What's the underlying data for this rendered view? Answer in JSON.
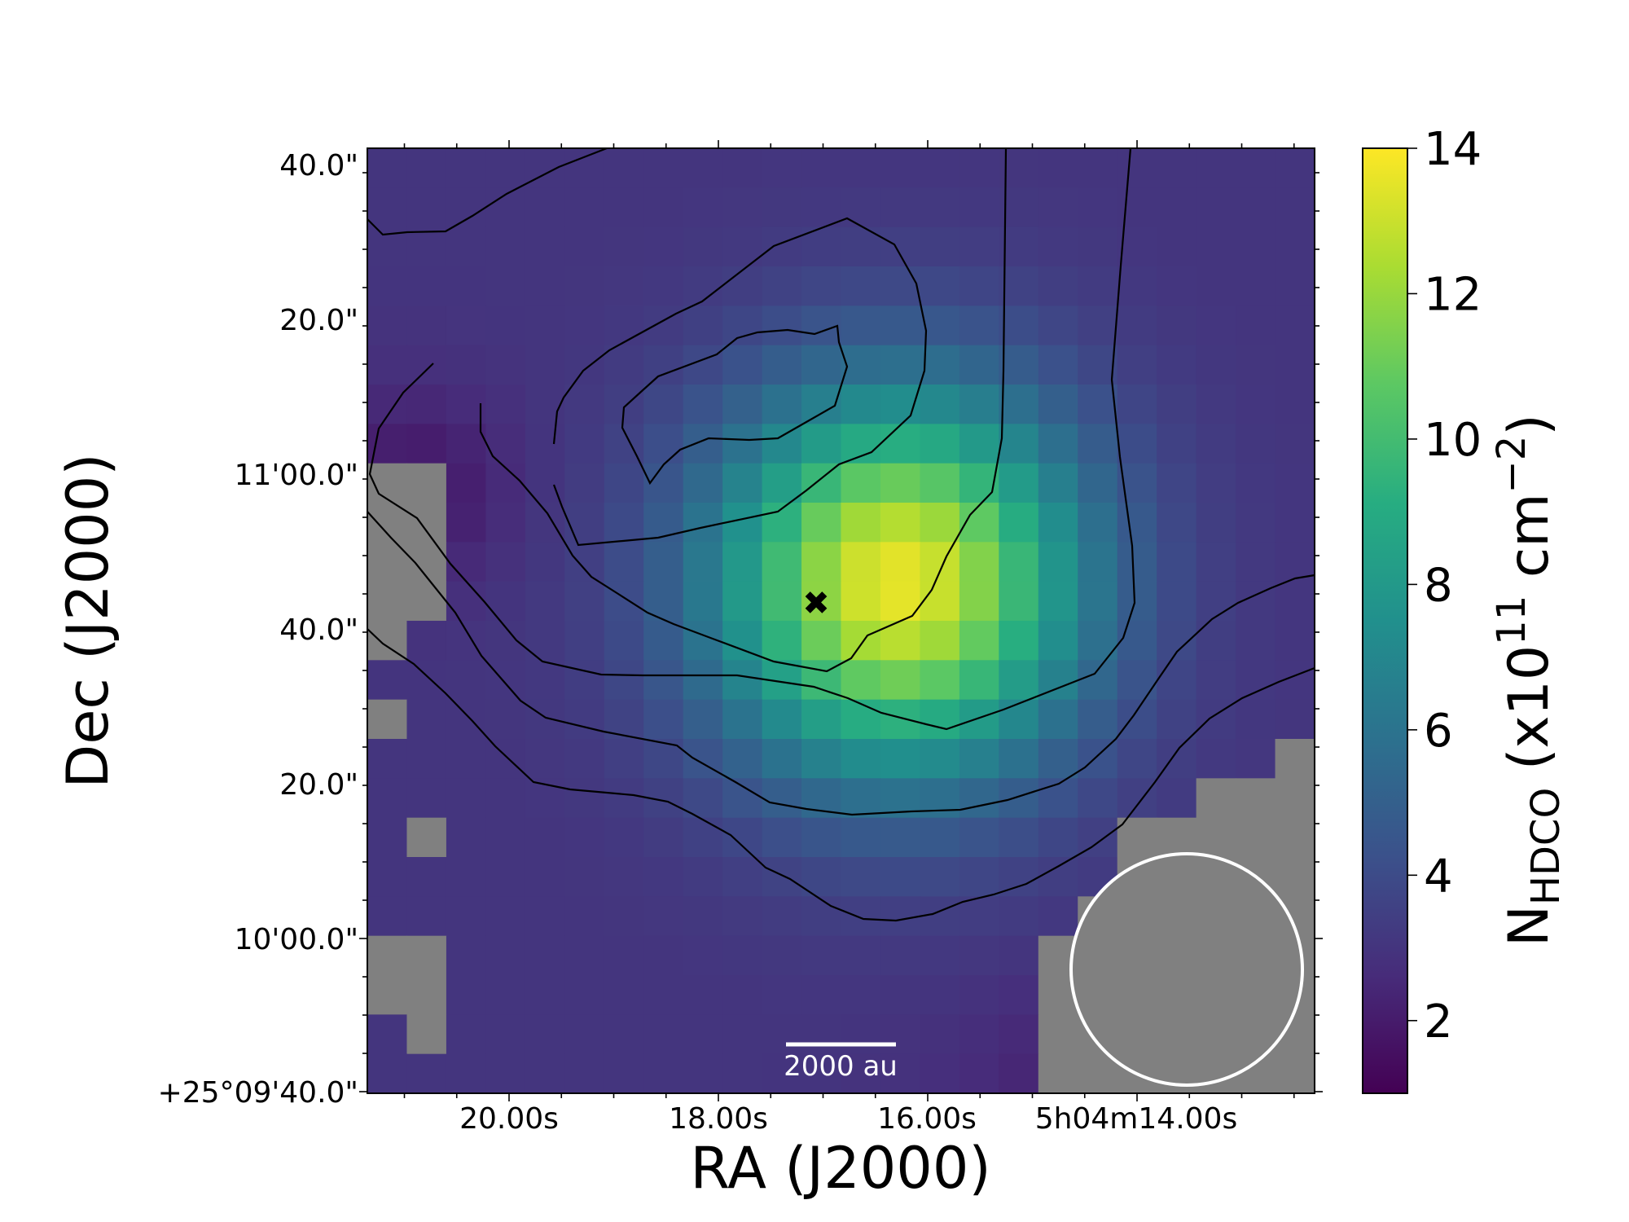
{
  "chart_data": {
    "type": "heatmap",
    "xlabel": "RA (J2000)",
    "ylabel": "Dec (J2000)",
    "x_ticks": [
      "20.00s",
      "18.00s",
      "16.00s",
      "5h04m14.00s"
    ],
    "y_ticks": [
      "+25°09'40.0\"",
      "10'00.0\"",
      "20.0\"",
      "40.0\"",
      "11'00.0\"",
      "20.0\"",
      "40.0\""
    ],
    "colorbar": {
      "label_main": "N",
      "label_sub": "HDCO",
      "label_rest": " (x10",
      "label_exp": "11",
      "label_unit": " cm",
      "label_unit_exp": "−2",
      "label_close": ")",
      "ticks": [
        "2",
        "4",
        "6",
        "8",
        "10",
        "12",
        "14"
      ],
      "min": 1,
      "max": 14,
      "colormap": "viridis"
    },
    "map": {
      "nx": 24,
      "ny": 24,
      "peak_value": 13.5,
      "peak_label": "column density peak",
      "masked_color": "#808080",
      "missing_regions": [
        "left edge, middle",
        "left edge, bottom",
        "bottom-right corner"
      ]
    },
    "contours": {
      "color": "#000000",
      "count": 5
    },
    "marker": {
      "symbol": "✖",
      "meaning": "source position"
    },
    "scalebar": {
      "label": "2000 au",
      "color": "#ffffff"
    },
    "beam": {
      "shape": "circle",
      "edge_color": "#ffffff",
      "fill": "#808080",
      "location": "bottom-right"
    }
  }
}
